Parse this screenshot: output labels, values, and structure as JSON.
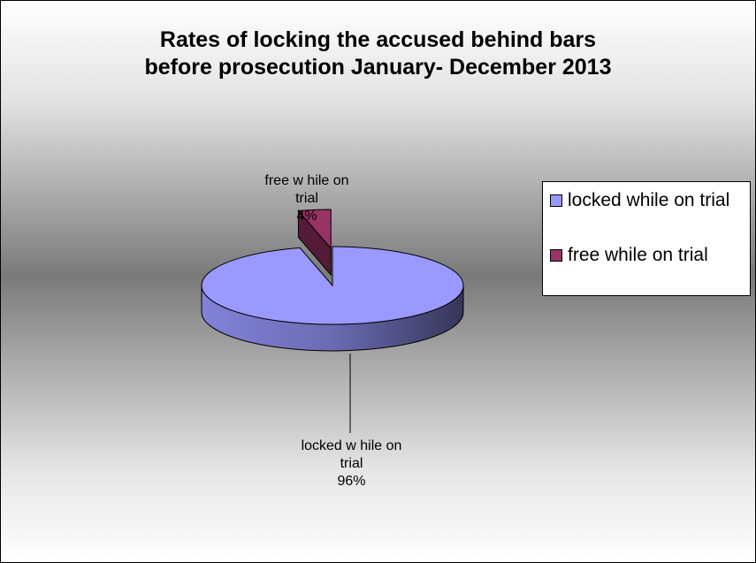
{
  "chart_data": {
    "type": "pie",
    "title_lines": [
      "Rates of locking the accused behind bars",
      "before prosecution January- December 2013"
    ],
    "categories": [
      "locked while on trial",
      "free while on trial"
    ],
    "values": [
      96,
      4
    ],
    "unit": "%",
    "colors": [
      "#9999ff",
      "#993366"
    ],
    "three_d": true,
    "legend_position": "right",
    "data_labels": [
      {
        "lines": [
          "locked w hile on",
          "trial",
          "96%"
        ]
      },
      {
        "lines": [
          "free w hile on",
          "trial",
          "4%"
        ]
      }
    ]
  }
}
